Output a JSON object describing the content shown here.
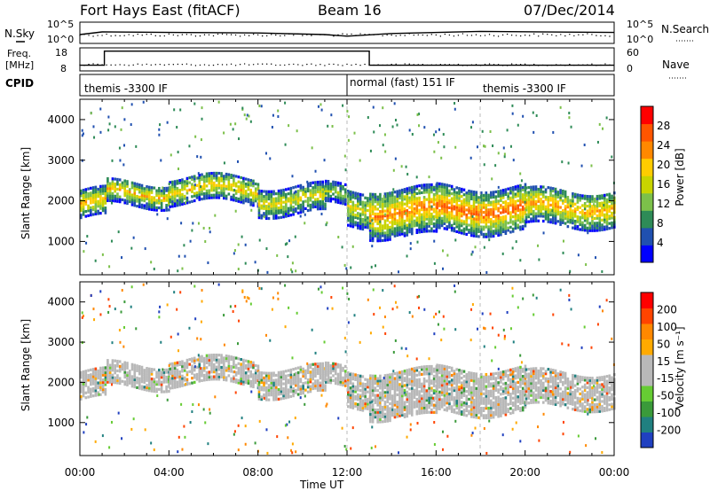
{
  "header": {
    "station": "Fort Hays East (fitACF)",
    "beam": "Beam 16",
    "date": "07/Dec/2014"
  },
  "top_panel": {
    "left_label": "N.Sky",
    "right_label": "N.Search",
    "tick_top": "10^5",
    "tick_bottom": "10^0",
    "right_tick_top": "10^5",
    "right_tick_bottom": "10^0"
  },
  "freq_panel": {
    "left_label_line1": "Freq.",
    "left_label_line2": "[MHz]",
    "left_ticks": [
      "18",
      "8"
    ],
    "right_label": "Nave",
    "right_ticks": [
      "60",
      "0"
    ]
  },
  "cpid": {
    "label": "CPID",
    "segments": [
      {
        "start": 0.0,
        "end": 12.0,
        "text": "themis -3300 IF"
      },
      {
        "start": 12.0,
        "end": 18.0,
        "text": "normal (fast) 151 IF"
      },
      {
        "start": 18.0,
        "end": 24.0,
        "text": "themis -3300 IF"
      }
    ]
  },
  "power_colorbar": {
    "title": "Power [dB]",
    "ticks": [
      "28",
      "24",
      "20",
      "16",
      "12",
      "8",
      "4"
    ],
    "colors": [
      "#0000ff",
      "#2050b0",
      "#2e8b57",
      "#7cc04a",
      "#c8d400",
      "#ffcc00",
      "#ff8800",
      "#ff5500",
      "#ff0000"
    ]
  },
  "velocity_colorbar": {
    "title": "Velocity [m s⁻¹]",
    "ticks": [
      "200",
      "100",
      "50",
      "15",
      "-15",
      "-50",
      "-100",
      "-200"
    ],
    "colors": [
      "#2040c0",
      "#208080",
      "#3a9a3a",
      "#66cc33",
      "#b8b8b8",
      "#b8b8b8",
      "#ffaa00",
      "#ff8800",
      "#ff4400",
      "#ff0000"
    ]
  },
  "x_axis": {
    "label": "Time UT",
    "ticks": [
      "00:00",
      "04:00",
      "08:00",
      "12:00",
      "16:00",
      "20:00",
      "00:00"
    ]
  },
  "y_axis_label": "Slant Range [km]",
  "y_ticks": [
    "4000",
    "3000",
    "2000",
    "1000"
  ],
  "chart_data": {
    "type": "heatmap",
    "title": "Fort Hays East (fitACF)  Beam 16  07/Dec/2014",
    "xlabel": "Time UT",
    "ylabel": "Slant Range [km]",
    "xlim": [
      0,
      24
    ],
    "ylim": [
      180,
      4500
    ],
    "frequency_series": {
      "unit": "MHz",
      "points": [
        [
          0.0,
          10.7
        ],
        [
          1.1,
          10.7
        ],
        [
          1.1,
          17.3
        ],
        [
          13.0,
          17.3
        ],
        [
          13.0,
          10.7
        ],
        [
          24.0,
          10.7
        ]
      ]
    },
    "noise_series": {
      "points": [
        [
          0.0,
          1.0
        ],
        [
          1.0,
          1.5
        ],
        [
          4.0,
          1.4
        ],
        [
          8.0,
          1.3
        ],
        [
          11.0,
          1.0
        ],
        [
          12.0,
          0.7
        ],
        [
          14.0,
          1.2
        ],
        [
          18.0,
          1.6
        ],
        [
          24.0,
          1.4
        ]
      ]
    },
    "echo_bands": [
      {
        "start": 0.0,
        "end": 1.2,
        "range_center": 1900,
        "width": 700,
        "power": 22,
        "velocity": -20
      },
      {
        "start": 1.2,
        "end": 4.0,
        "range_center": 2150,
        "width": 600,
        "power": 20,
        "velocity": 0
      },
      {
        "start": 4.0,
        "end": 8.0,
        "range_center": 2250,
        "width": 650,
        "power": 20,
        "velocity": 0
      },
      {
        "start": 8.0,
        "end": 11.0,
        "range_center": 2000,
        "width": 700,
        "power": 18,
        "velocity": 0
      },
      {
        "start": 11.0,
        "end": 11.9,
        "range_center": 2100,
        "width": 500,
        "power": 14,
        "velocity": 5
      },
      {
        "start": 12.0,
        "end": 13.0,
        "range_center": 1800,
        "width": 900,
        "power": 18,
        "velocity": -10
      },
      {
        "start": 13.0,
        "end": 16.0,
        "range_center": 1700,
        "width": 1200,
        "power": 24,
        "velocity": 0
      },
      {
        "start": 16.0,
        "end": 20.0,
        "range_center": 1750,
        "width": 1100,
        "power": 26,
        "velocity": 0
      },
      {
        "start": 20.0,
        "end": 24.0,
        "range_center": 1800,
        "width": 900,
        "power": 22,
        "velocity": 0
      }
    ]
  }
}
